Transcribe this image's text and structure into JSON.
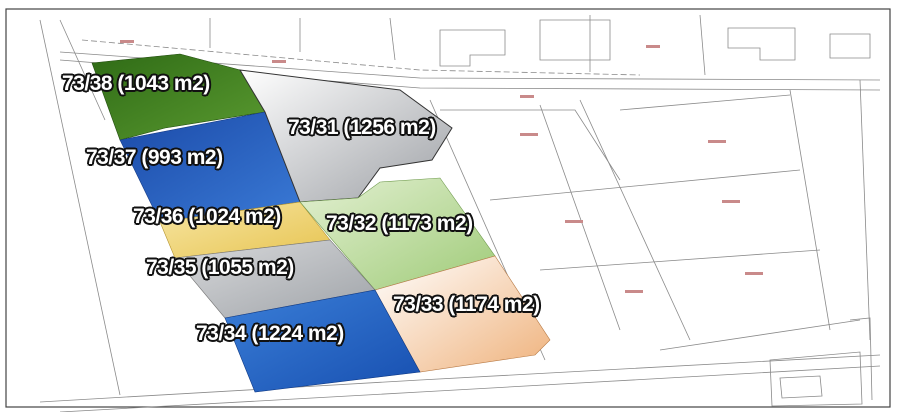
{
  "map": {
    "plots": [
      {
        "id": "plot-73-38",
        "label": "73/38 (1043 m2)",
        "color": "#3f7f1f"
      },
      {
        "id": "plot-73-37",
        "label": "73/37 (993 m2)",
        "color": "#1f58b8"
      },
      {
        "id": "plot-73-31",
        "label": "73/31 (1256 m2)",
        "color": "#b9bcc0"
      },
      {
        "id": "plot-73-36",
        "label": "73/36 (1024 m2)",
        "color": "#efd37a"
      },
      {
        "id": "plot-73-32",
        "label": "73/32 (1173 m2)",
        "color": "#b8d89a"
      },
      {
        "id": "plot-73-35",
        "label": "73/35 (1055 m2)",
        "color": "#b8bbbe"
      },
      {
        "id": "plot-73-33",
        "label": "73/33 (1174 m2)",
        "color": "#f3c79f"
      },
      {
        "id": "plot-73-34",
        "label": "73/34 (1224 m2)",
        "color": "#2663c0"
      }
    ]
  }
}
